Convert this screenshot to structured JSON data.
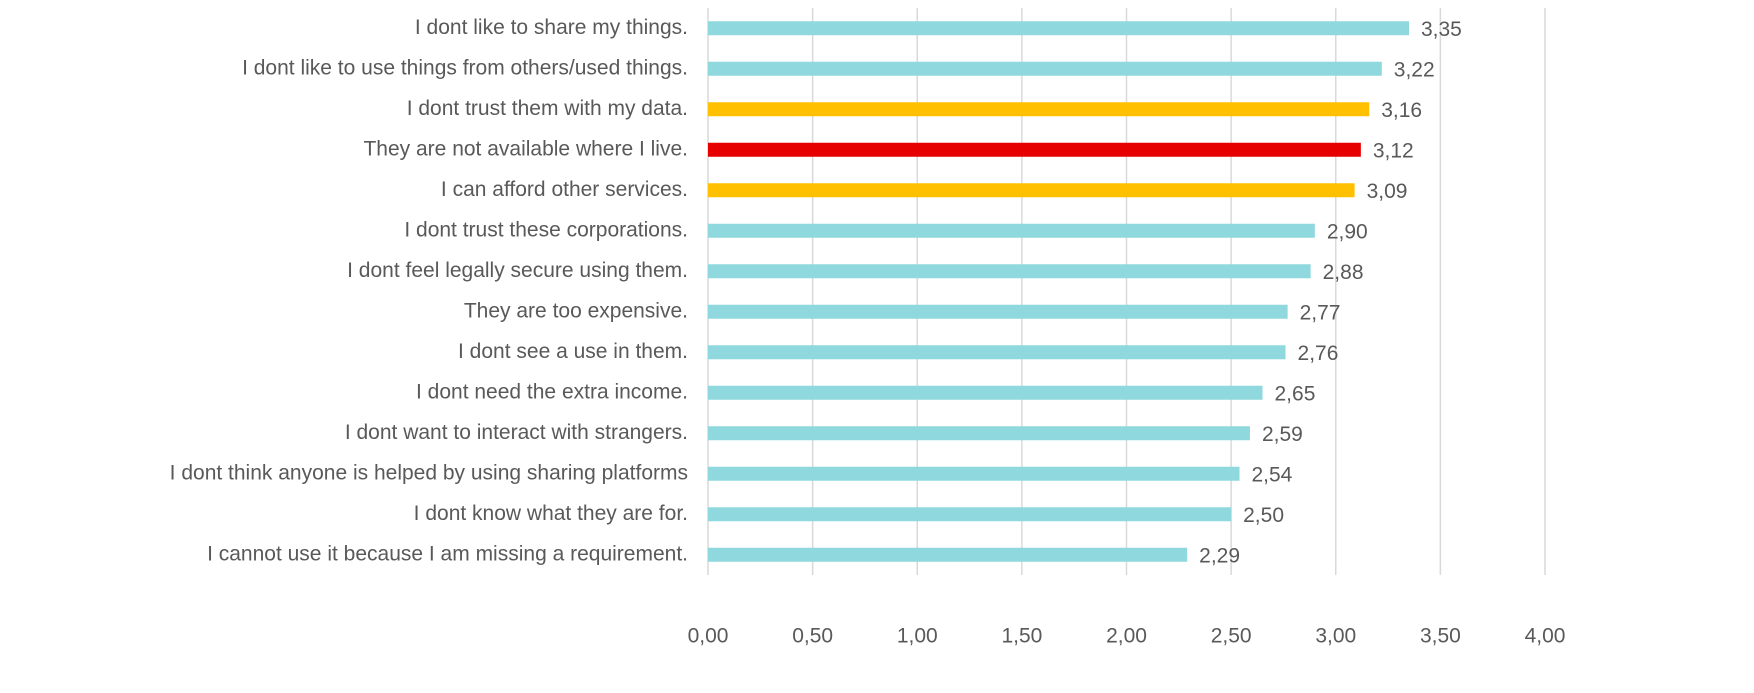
{
  "chart_data": {
    "type": "barh",
    "categories": [
      "I dont like to share my things.",
      "I dont like to use things from others/used things.",
      "I dont trust them with my data.",
      "They are not available where I live.",
      "I can afford other services.",
      "I dont trust these corporations.",
      "I dont feel legally secure using them.",
      "They are too expensive.",
      "I dont see a use in them.",
      "I dont need the extra income.",
      "I dont want to interact with strangers.",
      "I dont think anyone is helped by using sharing platforms",
      "I dont know what they are for.",
      "I cannot use it because I am missing a requirement."
    ],
    "values": [
      3.35,
      3.22,
      3.16,
      3.12,
      3.09,
      2.9,
      2.88,
      2.77,
      2.76,
      2.65,
      2.59,
      2.54,
      2.5,
      2.29
    ],
    "value_labels": [
      "3,35",
      "3,22",
      "3,16",
      "3,12",
      "3,09",
      "2,90",
      "2,88",
      "2,77",
      "2,76",
      "2,65",
      "2,59",
      "2,54",
      "2,50",
      "2,29"
    ],
    "colors": [
      "#8ed8de",
      "#8ed8de",
      "#ffc000",
      "#e60000",
      "#ffc000",
      "#8ed8de",
      "#8ed8de",
      "#8ed8de",
      "#8ed8de",
      "#8ed8de",
      "#8ed8de",
      "#8ed8de",
      "#8ed8de",
      "#8ed8de"
    ],
    "xlim": [
      0,
      4
    ],
    "xticks": [
      {
        "value": 0,
        "label": "0,00"
      },
      {
        "value": 0.5,
        "label": "0,50"
      },
      {
        "value": 1,
        "label": "1,00"
      },
      {
        "value": 1.5,
        "label": "1,50"
      },
      {
        "value": 2,
        "label": "2,00"
      },
      {
        "value": 2.5,
        "label": "2,50"
      },
      {
        "value": 3,
        "label": "3,00"
      },
      {
        "value": 3.5,
        "label": "3,50"
      },
      {
        "value": 4,
        "label": "4,00"
      }
    ],
    "grid": true
  }
}
